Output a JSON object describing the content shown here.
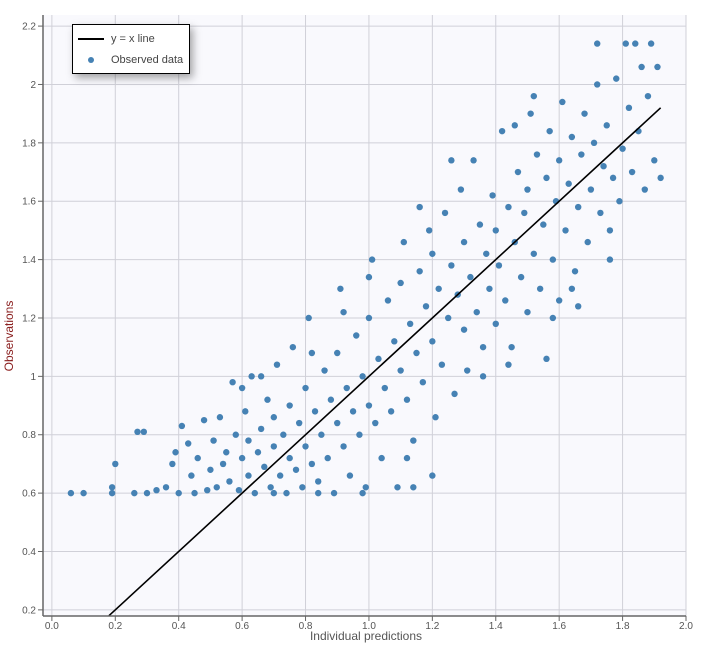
{
  "chart_data": {
    "type": "scatter",
    "title": "",
    "xlabel": "Individual predictions",
    "ylabel": "Observations",
    "xlim": [
      -0.028,
      2.0
    ],
    "ylim": [
      0.179,
      2.238
    ],
    "xticks": [
      "0.0",
      "0.2",
      "0.4",
      "0.6",
      "0.8",
      "1.0",
      "1.2",
      "1.4",
      "1.6",
      "1.8",
      "2.0"
    ],
    "yticks": [
      "0.2",
      "0.4",
      "0.6",
      "0.8",
      "1",
      "1.2",
      "1.4",
      "1.6",
      "1.8",
      "2",
      "2.2"
    ],
    "grid": true,
    "legend": {
      "placement": "top-left",
      "entries": [
        "y = x line",
        "Observed data"
      ]
    },
    "colors": {
      "points": "#4682b4",
      "line": "#000000",
      "plot_bg": "#f9f9fd",
      "grid": "#d0d0d8",
      "ylabel": "#8b2020",
      "xlabel": "#555555"
    },
    "identity_line": {
      "name": "y = x line",
      "x": [
        0.18,
        1.92
      ],
      "y": [
        0.18,
        1.92
      ]
    },
    "series": [
      {
        "name": "Observed data",
        "points": [
          [
            0.06,
            0.6
          ],
          [
            0.1,
            0.6
          ],
          [
            0.19,
            0.6
          ],
          [
            0.19,
            0.62
          ],
          [
            0.2,
            0.7
          ],
          [
            0.26,
            0.6
          ],
          [
            0.27,
            0.81
          ],
          [
            0.29,
            0.81
          ],
          [
            0.3,
            0.6
          ],
          [
            0.33,
            0.61
          ],
          [
            0.36,
            0.62
          ],
          [
            0.38,
            0.7
          ],
          [
            0.39,
            0.74
          ],
          [
            0.4,
            0.6
          ],
          [
            0.41,
            0.83
          ],
          [
            0.43,
            0.77
          ],
          [
            0.44,
            0.66
          ],
          [
            0.45,
            0.6
          ],
          [
            0.46,
            0.72
          ],
          [
            0.48,
            0.85
          ],
          [
            0.49,
            0.61
          ],
          [
            0.5,
            0.68
          ],
          [
            0.51,
            0.78
          ],
          [
            0.52,
            0.62
          ],
          [
            0.53,
            0.86
          ],
          [
            0.54,
            0.7
          ],
          [
            0.55,
            0.74
          ],
          [
            0.56,
            0.64
          ],
          [
            0.57,
            0.98
          ],
          [
            0.58,
            0.8
          ],
          [
            0.59,
            0.61
          ],
          [
            0.6,
            0.72
          ],
          [
            0.61,
            0.88
          ],
          [
            0.62,
            0.66
          ],
          [
            0.62,
            0.78
          ],
          [
            0.63,
            1.0
          ],
          [
            0.64,
            0.6
          ],
          [
            0.65,
            0.74
          ],
          [
            0.66,
            0.82
          ],
          [
            0.67,
            0.69
          ],
          [
            0.68,
            0.92
          ],
          [
            0.69,
            0.62
          ],
          [
            0.7,
            0.76
          ],
          [
            0.7,
            0.86
          ],
          [
            0.71,
            1.04
          ],
          [
            0.72,
            0.66
          ],
          [
            0.73,
            0.8
          ],
          [
            0.74,
            0.6
          ],
          [
            0.75,
            0.72
          ],
          [
            0.75,
            0.9
          ],
          [
            0.76,
            1.1
          ],
          [
            0.77,
            0.68
          ],
          [
            0.78,
            0.84
          ],
          [
            0.79,
            0.62
          ],
          [
            0.8,
            0.76
          ],
          [
            0.8,
            0.96
          ],
          [
            0.81,
            1.2
          ],
          [
            0.82,
            0.7
          ],
          [
            0.83,
            0.88
          ],
          [
            0.84,
            0.64
          ],
          [
            0.85,
            0.8
          ],
          [
            0.86,
            1.02
          ],
          [
            0.87,
            0.72
          ],
          [
            0.88,
            0.92
          ],
          [
            0.89,
            0.6
          ],
          [
            0.9,
            0.84
          ],
          [
            0.9,
            1.08
          ],
          [
            0.91,
            1.3
          ],
          [
            0.92,
            0.76
          ],
          [
            0.93,
            0.96
          ],
          [
            0.94,
            0.66
          ],
          [
            0.95,
            0.88
          ],
          [
            0.96,
            1.14
          ],
          [
            0.97,
            0.8
          ],
          [
            0.98,
            1.0
          ],
          [
            0.99,
            0.62
          ],
          [
            1.0,
            0.9
          ],
          [
            1.0,
            1.2
          ],
          [
            1.01,
            1.4
          ],
          [
            1.02,
            0.84
          ],
          [
            1.03,
            1.06
          ],
          [
            1.04,
            0.72
          ],
          [
            1.05,
            0.96
          ],
          [
            1.06,
            1.26
          ],
          [
            1.07,
            0.88
          ],
          [
            1.08,
            1.12
          ],
          [
            1.09,
            0.62
          ],
          [
            1.1,
            1.02
          ],
          [
            1.1,
            1.32
          ],
          [
            1.11,
            1.46
          ],
          [
            1.12,
            0.92
          ],
          [
            1.13,
            1.18
          ],
          [
            1.14,
            0.78
          ],
          [
            1.15,
            1.08
          ],
          [
            1.16,
            1.36
          ],
          [
            1.17,
            0.98
          ],
          [
            1.18,
            1.24
          ],
          [
            1.19,
            1.5
          ],
          [
            1.2,
            1.12
          ],
          [
            1.2,
            1.42
          ],
          [
            1.21,
            0.86
          ],
          [
            1.22,
            1.3
          ],
          [
            1.23,
            1.04
          ],
          [
            1.24,
            1.56
          ],
          [
            1.25,
            1.2
          ],
          [
            1.26,
            1.38
          ],
          [
            1.27,
            0.94
          ],
          [
            1.28,
            1.28
          ],
          [
            1.29,
            1.64
          ],
          [
            1.3,
            1.16
          ],
          [
            1.3,
            1.46
          ],
          [
            1.31,
            1.02
          ],
          [
            1.32,
            1.34
          ],
          [
            1.33,
            1.74
          ],
          [
            1.34,
            1.22
          ],
          [
            1.35,
            1.52
          ],
          [
            1.36,
            1.1
          ],
          [
            1.37,
            1.42
          ],
          [
            1.38,
            1.3
          ],
          [
            1.39,
            1.62
          ],
          [
            1.4,
            1.18
          ],
          [
            1.4,
            1.5
          ],
          [
            1.41,
            1.38
          ],
          [
            1.42,
            1.84
          ],
          [
            1.43,
            1.26
          ],
          [
            1.44,
            1.58
          ],
          [
            1.45,
            1.1
          ],
          [
            1.46,
            1.46
          ],
          [
            1.47,
            1.7
          ],
          [
            1.48,
            1.34
          ],
          [
            1.49,
            1.56
          ],
          [
            1.5,
            1.22
          ],
          [
            1.5,
            1.64
          ],
          [
            1.51,
            1.9
          ],
          [
            1.52,
            1.42
          ],
          [
            1.53,
            1.76
          ],
          [
            1.54,
            1.3
          ],
          [
            1.55,
            1.52
          ],
          [
            1.56,
            1.68
          ],
          [
            1.57,
            1.84
          ],
          [
            1.58,
            1.4
          ],
          [
            1.59,
            1.6
          ],
          [
            1.6,
            1.26
          ],
          [
            1.6,
            1.74
          ],
          [
            1.61,
            1.94
          ],
          [
            1.62,
            1.5
          ],
          [
            1.63,
            1.66
          ],
          [
            1.64,
            1.82
          ],
          [
            1.65,
            1.36
          ],
          [
            1.66,
            1.58
          ],
          [
            1.67,
            1.76
          ],
          [
            1.68,
            1.9
          ],
          [
            1.69,
            1.46
          ],
          [
            1.7,
            1.64
          ],
          [
            1.71,
            1.8
          ],
          [
            1.72,
            2.0
          ],
          [
            1.73,
            1.56
          ],
          [
            1.74,
            1.72
          ],
          [
            1.75,
            1.86
          ],
          [
            1.76,
            1.5
          ],
          [
            1.77,
            1.68
          ],
          [
            1.78,
            2.02
          ],
          [
            1.79,
            1.6
          ],
          [
            1.8,
            1.78
          ],
          [
            1.81,
            2.14
          ],
          [
            1.82,
            1.92
          ],
          [
            1.83,
            1.7
          ],
          [
            1.84,
            2.14
          ],
          [
            1.85,
            1.84
          ],
          [
            1.86,
            2.06
          ],
          [
            1.87,
            1.64
          ],
          [
            1.88,
            1.96
          ],
          [
            1.89,
            2.14
          ],
          [
            1.9,
            1.74
          ],
          [
            1.91,
            2.06
          ],
          [
            1.92,
            1.68
          ],
          [
            1.72,
            2.14
          ],
          [
            1.52,
            1.96
          ],
          [
            1.46,
            1.86
          ],
          [
            1.26,
            1.74
          ],
          [
            1.16,
            1.58
          ],
          [
            1.0,
            1.34
          ],
          [
            0.92,
            1.22
          ],
          [
            0.82,
            1.08
          ],
          [
            0.66,
            1.0
          ],
          [
            0.6,
            0.96
          ],
          [
            0.7,
            0.6
          ],
          [
            0.84,
            0.6
          ],
          [
            0.98,
            0.6
          ],
          [
            1.12,
            0.72
          ],
          [
            1.14,
            0.62
          ],
          [
            1.36,
            1.0
          ],
          [
            1.44,
            1.04
          ],
          [
            1.56,
            1.06
          ],
          [
            1.58,
            1.2
          ],
          [
            1.64,
            1.3
          ],
          [
            1.76,
            1.4
          ],
          [
            1.66,
            1.24
          ],
          [
            1.2,
            0.66
          ]
        ]
      }
    ]
  }
}
